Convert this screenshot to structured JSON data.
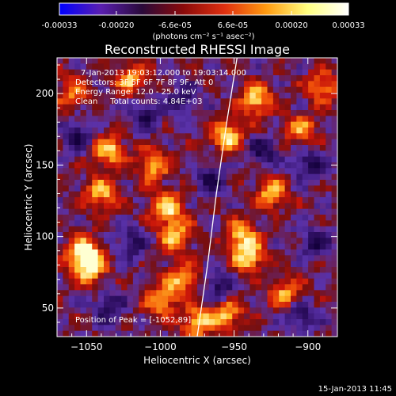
{
  "colorbar": {
    "tick_labels": [
      "-0.00033",
      "-0.00020",
      "-6.6e-05",
      "6.6e-05",
      "0.00020",
      "0.00033"
    ],
    "tick_values": [
      -0.00033,
      -0.0002,
      -6.6e-05,
      6.6e-05,
      0.0002,
      0.00033
    ],
    "range": [
      -0.00033,
      0.00033
    ],
    "unit_label": "(photons cm⁻² s⁻¹ asec⁻²)",
    "colors": [
      "#0000ff",
      "#5a1fb0",
      "#2a0a3a",
      "#8a0a0a",
      "#e03010",
      "#ff9a10",
      "#ffff80",
      "#ffffff"
    ]
  },
  "chart_data": {
    "type": "heatmap",
    "title": "Reconstructed RHESSI Image",
    "xlabel": "Heliocentric X (arcsec)",
    "ylabel": "Heliocentric Y (arcsec)",
    "xlim": [
      -1070,
      -880
    ],
    "ylim": [
      30,
      225
    ],
    "x_ticks": [
      -1050,
      -1000,
      -950,
      -900
    ],
    "x_tick_labels": [
      "−1050",
      "−1000",
      "−950",
      "−900"
    ],
    "y_ticks": [
      50,
      100,
      150,
      200
    ],
    "y_tick_labels": [
      "50",
      "100",
      "150",
      "200"
    ],
    "annotations": [
      "7-Jan-2013 19:03:12.000 to 19:03:14.000",
      "Detectors: 3F 5F 6F 7F 8F 9F, Att 0",
      "Energy Range: 12.0 - 25.0 keV",
      "Clean     Total counts: 4.84E+03"
    ],
    "peak_label": "Position of Peak = [-1052,89]",
    "peak_position": [
      -1052,
      89
    ],
    "limb_curve": [
      [
        -975,
        30
      ],
      [
        -968,
        80
      ],
      [
        -962,
        130
      ],
      [
        -955,
        180
      ],
      [
        -948,
        225
      ]
    ],
    "hot_spots": [
      {
        "x": -1052,
        "y": 89,
        "intensity": 1.0
      },
      {
        "x": -1048,
        "y": 78,
        "intensity": 0.9
      },
      {
        "x": -1040,
        "y": 130,
        "intensity": 0.8
      },
      {
        "x": -1035,
        "y": 160,
        "intensity": 0.85
      },
      {
        "x": -1005,
        "y": 150,
        "intensity": 0.8
      },
      {
        "x": -995,
        "y": 120,
        "intensity": 0.9
      },
      {
        "x": -990,
        "y": 100,
        "intensity": 0.85
      },
      {
        "x": -985,
        "y": 70,
        "intensity": 0.75
      },
      {
        "x": -1000,
        "y": 55,
        "intensity": 0.8
      },
      {
        "x": -955,
        "y": 170,
        "intensity": 0.95
      },
      {
        "x": -935,
        "y": 195,
        "intensity": 0.9
      },
      {
        "x": -945,
        "y": 100,
        "intensity": 0.8
      },
      {
        "x": -940,
        "y": 85,
        "intensity": 0.85
      },
      {
        "x": -925,
        "y": 130,
        "intensity": 0.8
      },
      {
        "x": -915,
        "y": 60,
        "intensity": 0.75
      },
      {
        "x": -905,
        "y": 175,
        "intensity": 0.7
      },
      {
        "x": -890,
        "y": 205,
        "intensity": 0.7
      },
      {
        "x": -1060,
        "y": 200,
        "intensity": 0.6
      },
      {
        "x": -1020,
        "y": 210,
        "intensity": 0.75
      },
      {
        "x": -975,
        "y": 40,
        "intensity": 0.85
      },
      {
        "x": -955,
        "y": 45,
        "intensity": 0.8
      }
    ],
    "cold_spots": [
      {
        "x": -1055,
        "y": 170
      },
      {
        "x": -1020,
        "y": 95
      },
      {
        "x": -1010,
        "y": 185
      },
      {
        "x": -985,
        "y": 195
      },
      {
        "x": -965,
        "y": 140
      },
      {
        "x": -930,
        "y": 160
      },
      {
        "x": -900,
        "y": 150
      },
      {
        "x": -895,
        "y": 95
      },
      {
        "x": -1035,
        "y": 50
      },
      {
        "x": -960,
        "y": 65
      },
      {
        "x": -905,
        "y": 45
      }
    ]
  },
  "footer_timestamp": "15-Jan-2013 11:45"
}
